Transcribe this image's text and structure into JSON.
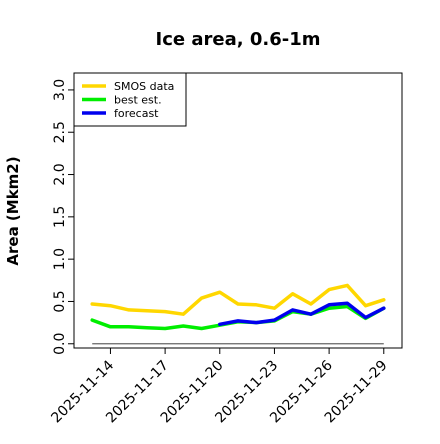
{
  "chart_data": {
    "type": "line",
    "title": "Ice area, 0.6-1m",
    "ylabel": "Area (Mkm2)",
    "xlabel": "",
    "ylim": [
      -0.05,
      3.2
    ],
    "yticks": [
      0.0,
      0.5,
      1.0,
      1.5,
      2.0,
      2.5,
      3.0
    ],
    "ytick_labels": [
      "0.0",
      "0.5",
      "1.0",
      "1.5",
      "2.0",
      "2.5",
      "3.0"
    ],
    "x_dates": [
      "2025-11-13",
      "2025-11-14",
      "2025-11-15",
      "2025-11-16",
      "2025-11-17",
      "2025-11-18",
      "2025-11-19",
      "2025-11-20",
      "2025-11-21",
      "2025-11-22",
      "2025-11-23",
      "2025-11-24",
      "2025-11-25",
      "2025-11-26",
      "2025-11-27",
      "2025-11-28",
      "2025-11-29"
    ],
    "xlim": [
      "2025-11-12",
      "2025-11-30"
    ],
    "xticks": [
      {
        "date": "2025-11-14",
        "label": "2025-11-14",
        "color": "#000000"
      },
      {
        "date": "2025-11-17",
        "label": "2025-11-17",
        "color": "#000000"
      },
      {
        "date": "2025-11-20",
        "label": "2025-11-20",
        "color": "#228B22"
      },
      {
        "date": "2025-11-23",
        "label": "2025-11-23",
        "color": "#000000"
      },
      {
        "date": "2025-11-26",
        "label": "2025-11-26",
        "color": "#000000"
      },
      {
        "date": "2025-11-29",
        "label": "2025-11-29",
        "color": "#000000"
      }
    ],
    "series": [
      {
        "name": "SMOS data",
        "color": "#FFD700",
        "x": [
          "2025-11-13",
          "2025-11-14",
          "2025-11-15",
          "2025-11-16",
          "2025-11-17",
          "2025-11-18",
          "2025-11-19",
          "2025-11-20",
          "2025-11-21",
          "2025-11-22",
          "2025-11-23",
          "2025-11-24",
          "2025-11-25",
          "2025-11-26",
          "2025-11-27",
          "2025-11-28",
          "2025-11-29"
        ],
        "values": [
          0.47,
          0.45,
          0.4,
          0.39,
          0.38,
          0.35,
          0.54,
          0.61,
          0.47,
          0.46,
          0.42,
          0.59,
          0.47,
          0.64,
          0.69,
          0.45,
          0.52
        ]
      },
      {
        "name": "best est.",
        "color": "#00EE00",
        "x": [
          "2025-11-13",
          "2025-11-14",
          "2025-11-15",
          "2025-11-16",
          "2025-11-17",
          "2025-11-18",
          "2025-11-19",
          "2025-11-20",
          "2025-11-21",
          "2025-11-22",
          "2025-11-23",
          "2025-11-24",
          "2025-11-25",
          "2025-11-26",
          "2025-11-27",
          "2025-11-28",
          "2025-11-29"
        ],
        "values": [
          0.28,
          0.2,
          0.2,
          0.19,
          0.18,
          0.21,
          0.18,
          0.22,
          0.26,
          0.25,
          0.27,
          0.38,
          0.35,
          0.42,
          0.44,
          0.3,
          0.42
        ]
      },
      {
        "name": "forecast",
        "color": "#0000EE",
        "x": [
          "2025-11-20",
          "2025-11-21",
          "2025-11-22",
          "2025-11-23",
          "2025-11-24",
          "2025-11-25",
          "2025-11-26",
          "2025-11-27",
          "2025-11-28",
          "2025-11-29"
        ],
        "values": [
          0.23,
          0.27,
          0.25,
          0.28,
          0.4,
          0.35,
          0.46,
          0.48,
          0.31,
          0.42
        ]
      }
    ],
    "reference_line": {
      "color": "#666666",
      "value": 0.0,
      "x": [
        "2025-11-13",
        "2025-11-29"
      ]
    },
    "legend": {
      "position": "top-left",
      "entries": [
        {
          "label": "SMOS data",
          "color": "#FFD700"
        },
        {
          "label": "best est.",
          "color": "#00EE00"
        },
        {
          "label": "forecast",
          "color": "#0000EE"
        }
      ]
    },
    "grid": false
  }
}
